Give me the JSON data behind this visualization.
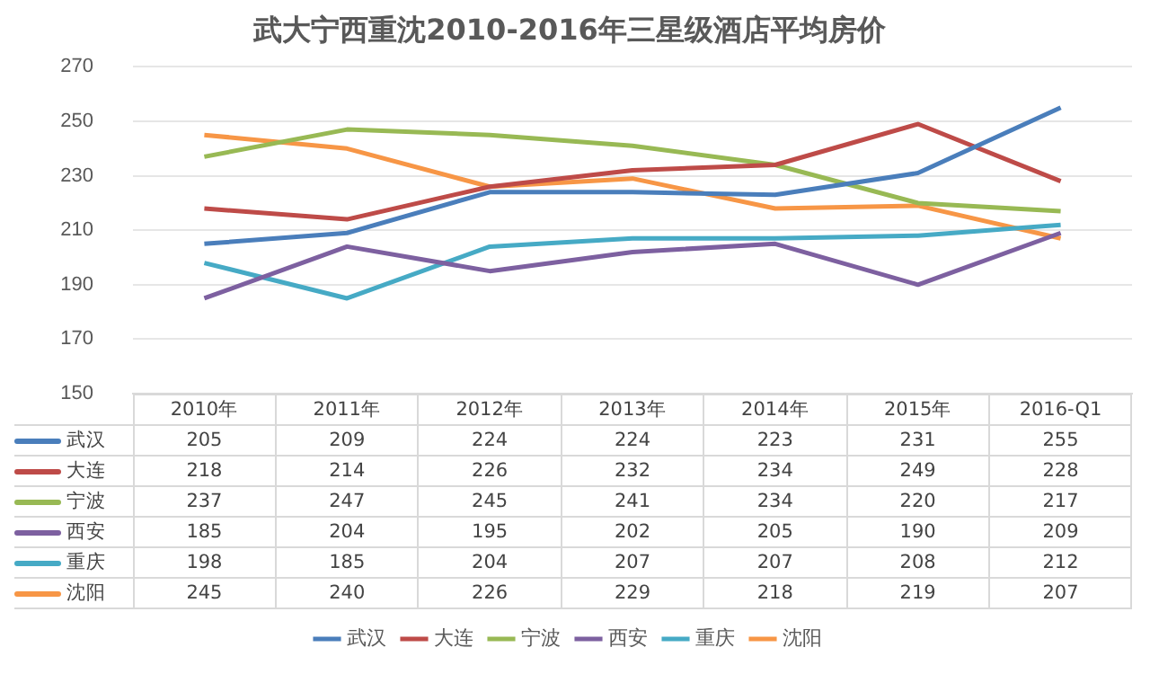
{
  "chart_data": {
    "type": "line",
    "title": "武大宁西重沈2010-2016年三星级酒店平均房价",
    "categories": [
      "2010年",
      "2011年",
      "2012年",
      "2013年",
      "2014年",
      "2015年",
      "2016-Q1"
    ],
    "series": [
      {
        "name": "武汉",
        "color": "#4a7ebb",
        "values": [
          205,
          209,
          224,
          224,
          223,
          231,
          255
        ]
      },
      {
        "name": "大连",
        "color": "#be4b48",
        "values": [
          218,
          214,
          226,
          232,
          234,
          249,
          228
        ]
      },
      {
        "name": "宁波",
        "color": "#98b954",
        "values": [
          237,
          247,
          245,
          241,
          234,
          220,
          217
        ]
      },
      {
        "name": "西安",
        "color": "#7d60a0",
        "values": [
          185,
          204,
          195,
          202,
          205,
          190,
          209
        ]
      },
      {
        "name": "重庆",
        "color": "#46aac5",
        "values": [
          198,
          185,
          204,
          207,
          207,
          208,
          212
        ]
      },
      {
        "name": "沈阳",
        "color": "#f79646",
        "values": [
          245,
          240,
          226,
          229,
          218,
          219,
          207
        ]
      }
    ],
    "ylim": [
      150,
      270
    ],
    "yticks": [
      150,
      170,
      190,
      210,
      230,
      250,
      270
    ],
    "grid": "y",
    "legend": "bottom",
    "marker": "none",
    "line_style": "solid",
    "data_labels": true,
    "tick_labels": "y"
  }
}
